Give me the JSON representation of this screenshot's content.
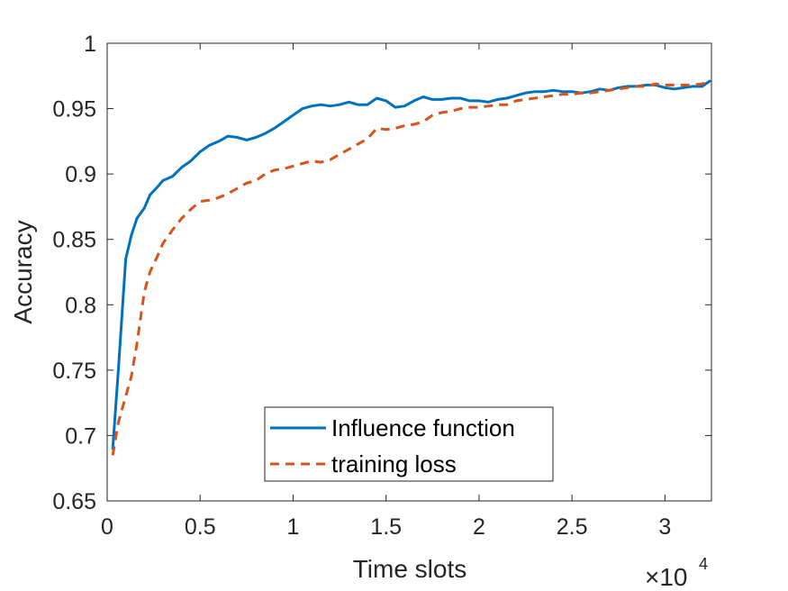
{
  "chart_data": {
    "type": "line",
    "title": "",
    "xlabel": "Time slots",
    "ylabel": "Accuracy",
    "x_exponent_label": "×10",
    "x_exponent_power": "4",
    "xlim": [
      0,
      3.25
    ],
    "ylim": [
      0.65,
      1.0
    ],
    "xticks": [
      0,
      0.5,
      1,
      1.5,
      2,
      2.5,
      3
    ],
    "xtick_labels": [
      "0",
      "0.5",
      "1",
      "1.5",
      "2",
      "2.5",
      "3"
    ],
    "yticks": [
      0.65,
      0.7,
      0.75,
      0.8,
      0.85,
      0.9,
      0.95,
      1.0
    ],
    "ytick_labels": [
      "0.65",
      "0.7",
      "0.75",
      "0.8",
      "0.85",
      "0.9",
      "0.95",
      "1"
    ],
    "grid": false,
    "legend_position": "bottom-center",
    "series": [
      {
        "name": "Influence function",
        "color": "#0072BD",
        "style": "solid",
        "x": [
          0.03,
          0.06,
          0.1,
          0.13,
          0.16,
          0.2,
          0.23,
          0.27,
          0.3,
          0.35,
          0.4,
          0.45,
          0.5,
          0.55,
          0.6,
          0.65,
          0.7,
          0.75,
          0.8,
          0.85,
          0.9,
          0.95,
          1.0,
          1.05,
          1.1,
          1.15,
          1.2,
          1.25,
          1.3,
          1.35,
          1.4,
          1.45,
          1.5,
          1.55,
          1.6,
          1.65,
          1.7,
          1.75,
          1.8,
          1.85,
          1.9,
          1.95,
          2.0,
          2.05,
          2.1,
          2.15,
          2.2,
          2.25,
          2.3,
          2.35,
          2.4,
          2.45,
          2.5,
          2.55,
          2.6,
          2.65,
          2.7,
          2.75,
          2.8,
          2.85,
          2.9,
          2.95,
          3.0,
          3.05,
          3.1,
          3.15,
          3.2,
          3.24
        ],
        "y": [
          0.69,
          0.75,
          0.835,
          0.853,
          0.866,
          0.874,
          0.884,
          0.89,
          0.895,
          0.898,
          0.905,
          0.91,
          0.917,
          0.922,
          0.925,
          0.929,
          0.928,
          0.926,
          0.928,
          0.931,
          0.935,
          0.94,
          0.945,
          0.95,
          0.952,
          0.953,
          0.952,
          0.953,
          0.955,
          0.953,
          0.953,
          0.958,
          0.956,
          0.951,
          0.952,
          0.956,
          0.959,
          0.957,
          0.957,
          0.958,
          0.958,
          0.956,
          0.956,
          0.955,
          0.957,
          0.958,
          0.96,
          0.962,
          0.963,
          0.963,
          0.964,
          0.963,
          0.963,
          0.962,
          0.963,
          0.965,
          0.964,
          0.966,
          0.967,
          0.967,
          0.968,
          0.968,
          0.966,
          0.965,
          0.966,
          0.967,
          0.967,
          0.971
        ]
      },
      {
        "name": "training loss",
        "color": "#D95319",
        "style": "dashed",
        "x": [
          0.03,
          0.06,
          0.1,
          0.13,
          0.16,
          0.2,
          0.23,
          0.27,
          0.3,
          0.35,
          0.4,
          0.45,
          0.5,
          0.55,
          0.6,
          0.65,
          0.7,
          0.75,
          0.8,
          0.85,
          0.9,
          0.95,
          1.0,
          1.05,
          1.1,
          1.15,
          1.2,
          1.25,
          1.3,
          1.35,
          1.4,
          1.45,
          1.5,
          1.55,
          1.6,
          1.65,
          1.7,
          1.75,
          1.8,
          1.85,
          1.9,
          1.95,
          2.0,
          2.05,
          2.1,
          2.15,
          2.2,
          2.25,
          2.3,
          2.35,
          2.4,
          2.45,
          2.5,
          2.55,
          2.6,
          2.65,
          2.7,
          2.75,
          2.8,
          2.85,
          2.9,
          2.95,
          3.0,
          3.05,
          3.1,
          3.15,
          3.2,
          3.24
        ],
        "y": [
          0.685,
          0.71,
          0.73,
          0.745,
          0.77,
          0.81,
          0.825,
          0.837,
          0.847,
          0.857,
          0.866,
          0.873,
          0.879,
          0.88,
          0.882,
          0.885,
          0.889,
          0.893,
          0.895,
          0.9,
          0.903,
          0.904,
          0.906,
          0.908,
          0.91,
          0.909,
          0.911,
          0.915,
          0.919,
          0.923,
          0.927,
          0.935,
          0.934,
          0.935,
          0.937,
          0.938,
          0.94,
          0.945,
          0.947,
          0.948,
          0.95,
          0.951,
          0.951,
          0.952,
          0.953,
          0.953,
          0.956,
          0.957,
          0.958,
          0.959,
          0.96,
          0.961,
          0.961,
          0.962,
          0.962,
          0.963,
          0.964,
          0.965,
          0.966,
          0.967,
          0.967,
          0.969,
          0.968,
          0.968,
          0.968,
          0.968,
          0.969,
          0.97
        ]
      }
    ]
  }
}
